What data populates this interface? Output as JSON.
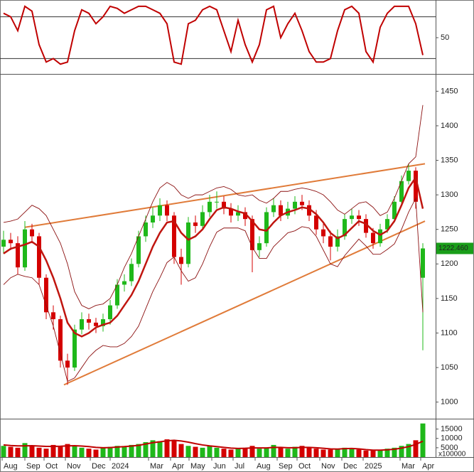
{
  "chart_data": [
    {
      "type": "line",
      "color": "#c00000",
      "values": [
        85,
        80,
        60,
        95,
        88,
        40,
        15,
        20,
        12,
        15,
        60,
        90,
        85,
        70,
        80,
        95,
        92,
        85,
        90,
        95,
        95,
        90,
        85,
        70,
        15,
        12,
        70,
        75,
        90,
        95,
        90,
        60,
        30,
        75,
        40,
        15,
        40,
        90,
        95,
        50,
        70,
        85,
        60,
        30,
        15,
        15,
        20,
        60,
        90,
        95,
        85,
        30,
        15,
        65,
        85,
        95,
        95,
        95,
        70,
        25
      ],
      "ylim": [
        -1,
        102
      ],
      "yticks": [
        50
      ],
      "levels": [
        20,
        80
      ]
    },
    {
      "type": "candlestick",
      "up_color": "#1fb81a",
      "down_color": "#d40000",
      "x": [
        0,
        1,
        2,
        3,
        4,
        5,
        6,
        7,
        8,
        9,
        10,
        11,
        12,
        13,
        14,
        15,
        16,
        17,
        18,
        19,
        20,
        21,
        22,
        23,
        24,
        25,
        26,
        27,
        28,
        29,
        30,
        31,
        32,
        33,
        34,
        35,
        36,
        37,
        38,
        39,
        40,
        41,
        42,
        43,
        44,
        45,
        46,
        47,
        48,
        49,
        50,
        51,
        52,
        53,
        54,
        55,
        56,
        57,
        58,
        59
      ],
      "open": [
        1225,
        1235,
        1230,
        1195,
        1250,
        1240,
        1180,
        1130,
        1120,
        1060,
        1050,
        1105,
        1120,
        1115,
        1110,
        1120,
        1140,
        1170,
        1175,
        1200,
        1240,
        1260,
        1270,
        1285,
        1270,
        1210,
        1200,
        1260,
        1255,
        1275,
        1290,
        1290,
        1280,
        1270,
        1275,
        1265,
        1220,
        1230,
        1275,
        1285,
        1270,
        1280,
        1290,
        1285,
        1270,
        1250,
        1240,
        1225,
        1240,
        1265,
        1270,
        1265,
        1245,
        1230,
        1250,
        1265,
        1290,
        1320,
        1335,
        1180
      ],
      "high": [
        1248,
        1245,
        1240,
        1262,
        1258,
        1245,
        1185,
        1140,
        1125,
        1070,
        1112,
        1130,
        1128,
        1122,
        1128,
        1148,
        1178,
        1185,
        1208,
        1248,
        1270,
        1282,
        1295,
        1292,
        1275,
        1222,
        1268,
        1270,
        1285,
        1300,
        1305,
        1298,
        1288,
        1285,
        1282,
        1270,
        1240,
        1282,
        1295,
        1292,
        1290,
        1298,
        1300,
        1292,
        1278,
        1258,
        1248,
        1250,
        1272,
        1280,
        1278,
        1272,
        1252,
        1258,
        1272,
        1298,
        1328,
        1345,
        1340,
        1230
      ],
      "low": [
        1215,
        1220,
        1185,
        1190,
        1230,
        1170,
        1120,
        1105,
        1050,
        1025,
        1045,
        1098,
        1105,
        1100,
        1102,
        1112,
        1135,
        1160,
        1168,
        1195,
        1232,
        1252,
        1262,
        1262,
        1200,
        1170,
        1195,
        1245,
        1250,
        1268,
        1280,
        1272,
        1260,
        1262,
        1255,
        1188,
        1210,
        1225,
        1268,
        1262,
        1265,
        1272,
        1278,
        1262,
        1242,
        1230,
        1205,
        1218,
        1235,
        1258,
        1255,
        1238,
        1222,
        1225,
        1245,
        1260,
        1285,
        1315,
        1280,
        1075
      ],
      "close": [
        1235,
        1230,
        1195,
        1250,
        1240,
        1180,
        1130,
        1120,
        1060,
        1050,
        1105,
        1120,
        1115,
        1110,
        1120,
        1140,
        1170,
        1175,
        1200,
        1240,
        1260,
        1270,
        1285,
        1270,
        1210,
        1200,
        1260,
        1255,
        1275,
        1290,
        1290,
        1280,
        1270,
        1275,
        1265,
        1220,
        1230,
        1275,
        1285,
        1270,
        1280,
        1290,
        1285,
        1270,
        1250,
        1240,
        1225,
        1240,
        1265,
        1270,
        1265,
        1245,
        1230,
        1250,
        1265,
        1290,
        1320,
        1335,
        1290,
        1222.46
      ],
      "last_price_label": "1222.460",
      "last_price_color": "#1a9e1a",
      "overlays": [
        {
          "color": "#c0150f",
          "width": 2.5,
          "values": [
            1215,
            1222,
            1225,
            1228,
            1232,
            1225,
            1205,
            1180,
            1150,
            1115,
            1100,
            1095,
            1100,
            1108,
            1112,
            1115,
            1125,
            1140,
            1155,
            1175,
            1200,
            1225,
            1245,
            1260,
            1262,
            1245,
            1235,
            1240,
            1250,
            1265,
            1278,
            1282,
            1280,
            1276,
            1273,
            1262,
            1250,
            1248,
            1260,
            1270,
            1275,
            1278,
            1282,
            1280,
            1272,
            1260,
            1245,
            1237,
            1242,
            1252,
            1262,
            1258,
            1248,
            1242,
            1248,
            1262,
            1285,
            1310,
            1325,
            1280
          ]
        },
        {
          "color": "#8b1010",
          "width": 0.9,
          "values": [
            1260,
            1262,
            1265,
            1275,
            1285,
            1280,
            1270,
            1250,
            1230,
            1200,
            1160,
            1140,
            1135,
            1140,
            1142,
            1150,
            1170,
            1195,
            1215,
            1240,
            1265,
            1290,
            1310,
            1318,
            1312,
            1300,
            1295,
            1300,
            1300,
            1305,
            1310,
            1312,
            1308,
            1300,
            1298,
            1300,
            1292,
            1288,
            1295,
            1305,
            1305,
            1308,
            1310,
            1308,
            1305,
            1300,
            1290,
            1278,
            1272,
            1280,
            1288,
            1290,
            1282,
            1270,
            1275,
            1295,
            1320,
            1345,
            1355,
            1430
          ]
        },
        {
          "color": "#8b1010",
          "width": 0.9,
          "values": [
            1170,
            1180,
            1185,
            1182,
            1180,
            1170,
            1140,
            1110,
            1070,
            1030,
            1035,
            1050,
            1065,
            1075,
            1082,
            1080,
            1080,
            1085,
            1095,
            1110,
            1135,
            1160,
            1180,
            1202,
            1210,
            1190,
            1175,
            1180,
            1200,
            1225,
            1246,
            1252,
            1252,
            1252,
            1248,
            1224,
            1208,
            1208,
            1225,
            1235,
            1245,
            1248,
            1254,
            1252,
            1240,
            1220,
            1200,
            1196,
            1212,
            1224,
            1236,
            1226,
            1214,
            1214,
            1221,
            1229,
            1250,
            1275,
            1295,
            1130
          ]
        }
      ],
      "trendlines": [
        {
          "color": "#e07b39",
          "x": [
            3,
            59.3
          ],
          "values": [
            1253,
            1345
          ]
        },
        {
          "color": "#e07b39",
          "x": [
            8.5,
            59.3
          ],
          "values": [
            1025,
            1262
          ]
        }
      ],
      "xlim": [
        -0.5,
        60.8
      ],
      "ylim": [
        977,
        1473
      ],
      "yticks": [
        1000,
        1050,
        1100,
        1150,
        1200,
        1250,
        1300,
        1350,
        1400,
        1450
      ],
      "xticks": [
        {
          "value": -0.2,
          "label": "Aug"
        },
        {
          "value": 3,
          "label": "Sep"
        },
        {
          "value": 5.7,
          "label": "Oct"
        },
        {
          "value": 8.7,
          "label": "Nov"
        },
        {
          "value": 12.2,
          "label": "Dec"
        },
        {
          "value": 15,
          "label": "2024"
        },
        {
          "value": 20.4,
          "label": "Mar"
        },
        {
          "value": 23.5,
          "label": "Apr"
        },
        {
          "value": 26.1,
          "label": "May"
        },
        {
          "value": 29.3,
          "label": "Jun"
        },
        {
          "value": 32.3,
          "label": "Jul"
        },
        {
          "value": 35.4,
          "label": "Aug"
        },
        {
          "value": 38.5,
          "label": "Sep"
        },
        {
          "value": 41.3,
          "label": "Oct"
        },
        {
          "value": 44.5,
          "label": "Nov"
        },
        {
          "value": 47.6,
          "label": "Dec"
        },
        {
          "value": 50.6,
          "label": "2025"
        },
        {
          "value": 55.8,
          "label": "Mar"
        },
        {
          "value": 58.7,
          "label": "Apr"
        }
      ]
    },
    {
      "type": "bar",
      "unit_label": "x100000",
      "average_color": "#c00000",
      "values": [
        6000,
        5500,
        5000,
        7500,
        6000,
        5000,
        4500,
        6500,
        5500,
        7000,
        6000,
        5000,
        4500,
        4000,
        5000,
        5500,
        6000,
        5500,
        6500,
        7000,
        8000,
        9000,
        8500,
        9500,
        9000,
        7000,
        6000,
        5500,
        5000,
        6000,
        5000,
        4500,
        4000,
        4500,
        5000,
        6000,
        4500,
        5000,
        6500,
        5000,
        4500,
        5500,
        6000,
        5000,
        4500,
        4000,
        4000,
        4500,
        5000,
        4500,
        4000,
        3500,
        3500,
        4000,
        4500,
        5000,
        6000,
        7000,
        9000,
        18000
      ],
      "average": [
        6500,
        6200,
        6000,
        6000,
        6100,
        5900,
        5700,
        5700,
        5800,
        6000,
        6100,
        5900,
        5600,
        5200,
        5000,
        5100,
        5400,
        5600,
        5900,
        6300,
        7000,
        7700,
        8200,
        8700,
        9000,
        8600,
        8000,
        7200,
        6500,
        6000,
        5600,
        5200,
        4800,
        4600,
        4700,
        4900,
        4900,
        4900,
        5200,
        5200,
        5000,
        5000,
        5200,
        5200,
        5000,
        4700,
        4400,
        4300,
        4500,
        4600,
        4400,
        4000,
        3700,
        3700,
        3900,
        4200,
        4800,
        5600,
        6800,
        8500
      ],
      "ylim": [
        0,
        19800
      ],
      "yticks": [
        5000,
        10000,
        15000
      ]
    }
  ]
}
